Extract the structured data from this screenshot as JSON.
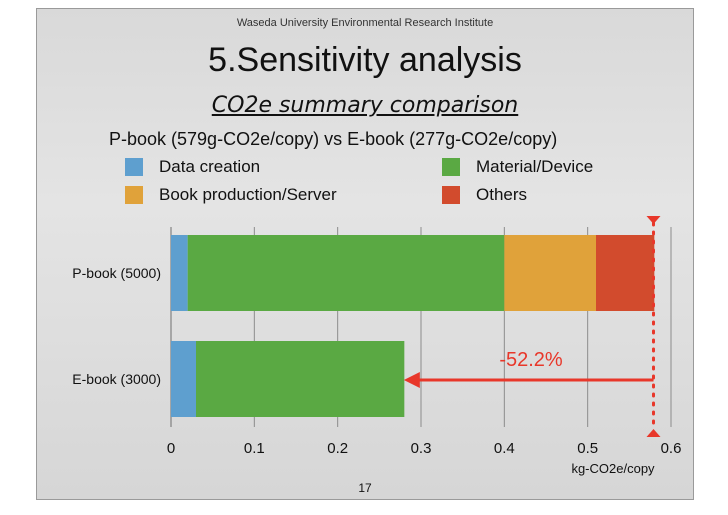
{
  "header": {
    "institute": "Waseda University Environmental Research Institute",
    "title": "5.Sensitivity analysis",
    "subtitle": "CO2e summary comparison",
    "comparison": "P-book (579g-CO2e/copy) vs E-book (277g-CO2e/copy)"
  },
  "legend": [
    {
      "label": "Data creation",
      "color": "#5e9fcf"
    },
    {
      "label": "Material/Device",
      "color": "#5aa943"
    },
    {
      "label": "Book production/Server",
      "color": "#e0a23a"
    },
    {
      "label": "Others",
      "color": "#d24b2d"
    }
  ],
  "chart_data": {
    "type": "bar",
    "orientation": "horizontal",
    "stacked": true,
    "categories": [
      "P-book (5000)",
      "E-book (3000)"
    ],
    "series": [
      {
        "name": "Data creation",
        "values": [
          0.02,
          0.03
        ]
      },
      {
        "name": "Material/Device",
        "values": [
          0.38,
          0.25
        ]
      },
      {
        "name": "Book production/Server",
        "values": [
          0.11,
          0
        ]
      },
      {
        "name": "Others",
        "values": [
          0.07,
          0
        ]
      }
    ],
    "xlim": [
      0,
      0.6
    ],
    "xticks": [
      "0",
      "0.1",
      "0.2",
      "0.3",
      "0.4",
      "0.5",
      "0.6"
    ],
    "tick_values": [
      0,
      0.1,
      0.2,
      0.3,
      0.4,
      0.5,
      0.6
    ],
    "xlabel": "kg-CO2e/copy",
    "grid": true,
    "annotation": {
      "text": "-52.2%",
      "from_value": 0.579,
      "to_value": 0.277,
      "color": "#e8372a"
    }
  },
  "footer": {
    "page_number": "17"
  }
}
